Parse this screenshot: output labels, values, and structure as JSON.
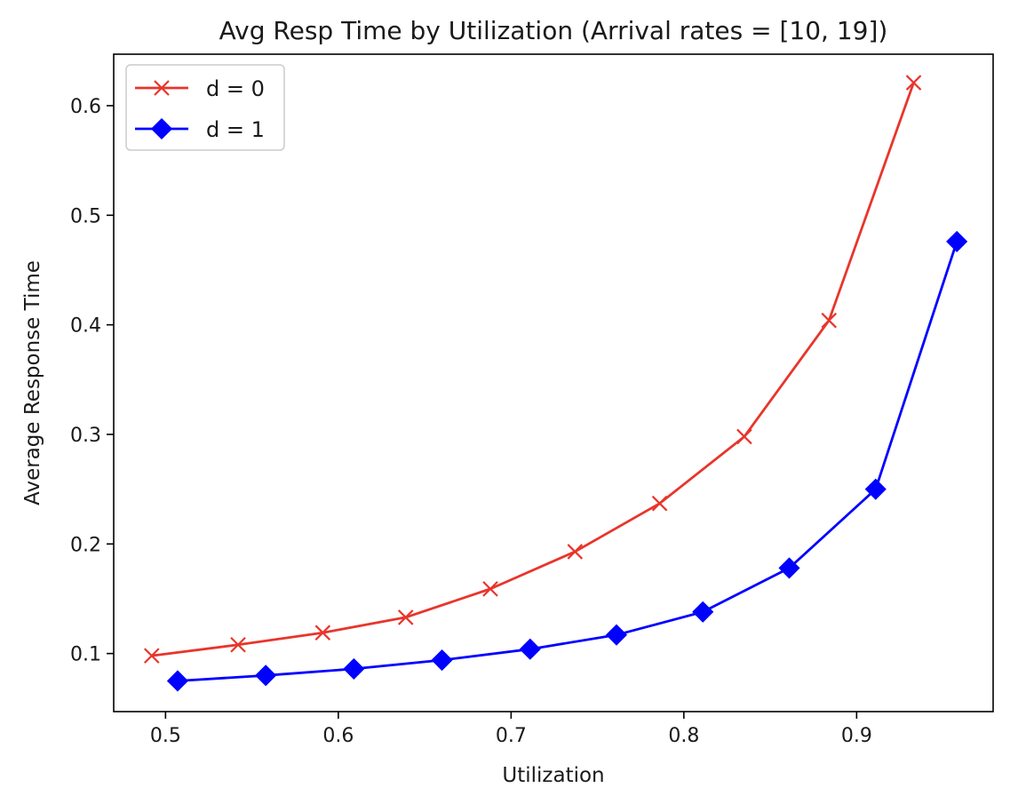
{
  "chart_data": {
    "type": "line",
    "title": "Avg Resp Time by Utilization (Arrival rates = [10, 19])",
    "xlabel": "Utilization",
    "ylabel": "Average Response Time",
    "xlim": [
      0.47,
      0.979
    ],
    "ylim": [
      0.047,
      0.647
    ],
    "xticks": [
      "0.5",
      "0.6",
      "0.7",
      "0.8",
      "0.9"
    ],
    "yticks": [
      "0.1",
      "0.2",
      "0.3",
      "0.4",
      "0.5",
      "0.6"
    ],
    "grid": false,
    "legend_placement": "upper-left",
    "series": [
      {
        "name": "d = 0",
        "color": "#e8352b",
        "marker": "x",
        "x": [
          0.492,
          0.542,
          0.591,
          0.639,
          0.688,
          0.737,
          0.786,
          0.835,
          0.884,
          0.933
        ],
        "y": [
          0.098,
          0.108,
          0.119,
          0.133,
          0.159,
          0.193,
          0.237,
          0.298,
          0.404,
          0.621
        ]
      },
      {
        "name": "d = 1",
        "color": "#0000ff",
        "marker": "diamond",
        "x": [
          0.507,
          0.558,
          0.609,
          0.66,
          0.711,
          0.761,
          0.811,
          0.861,
          0.911,
          0.958
        ],
        "y": [
          0.075,
          0.08,
          0.086,
          0.094,
          0.104,
          0.117,
          0.138,
          0.178,
          0.25,
          0.476
        ]
      }
    ]
  }
}
